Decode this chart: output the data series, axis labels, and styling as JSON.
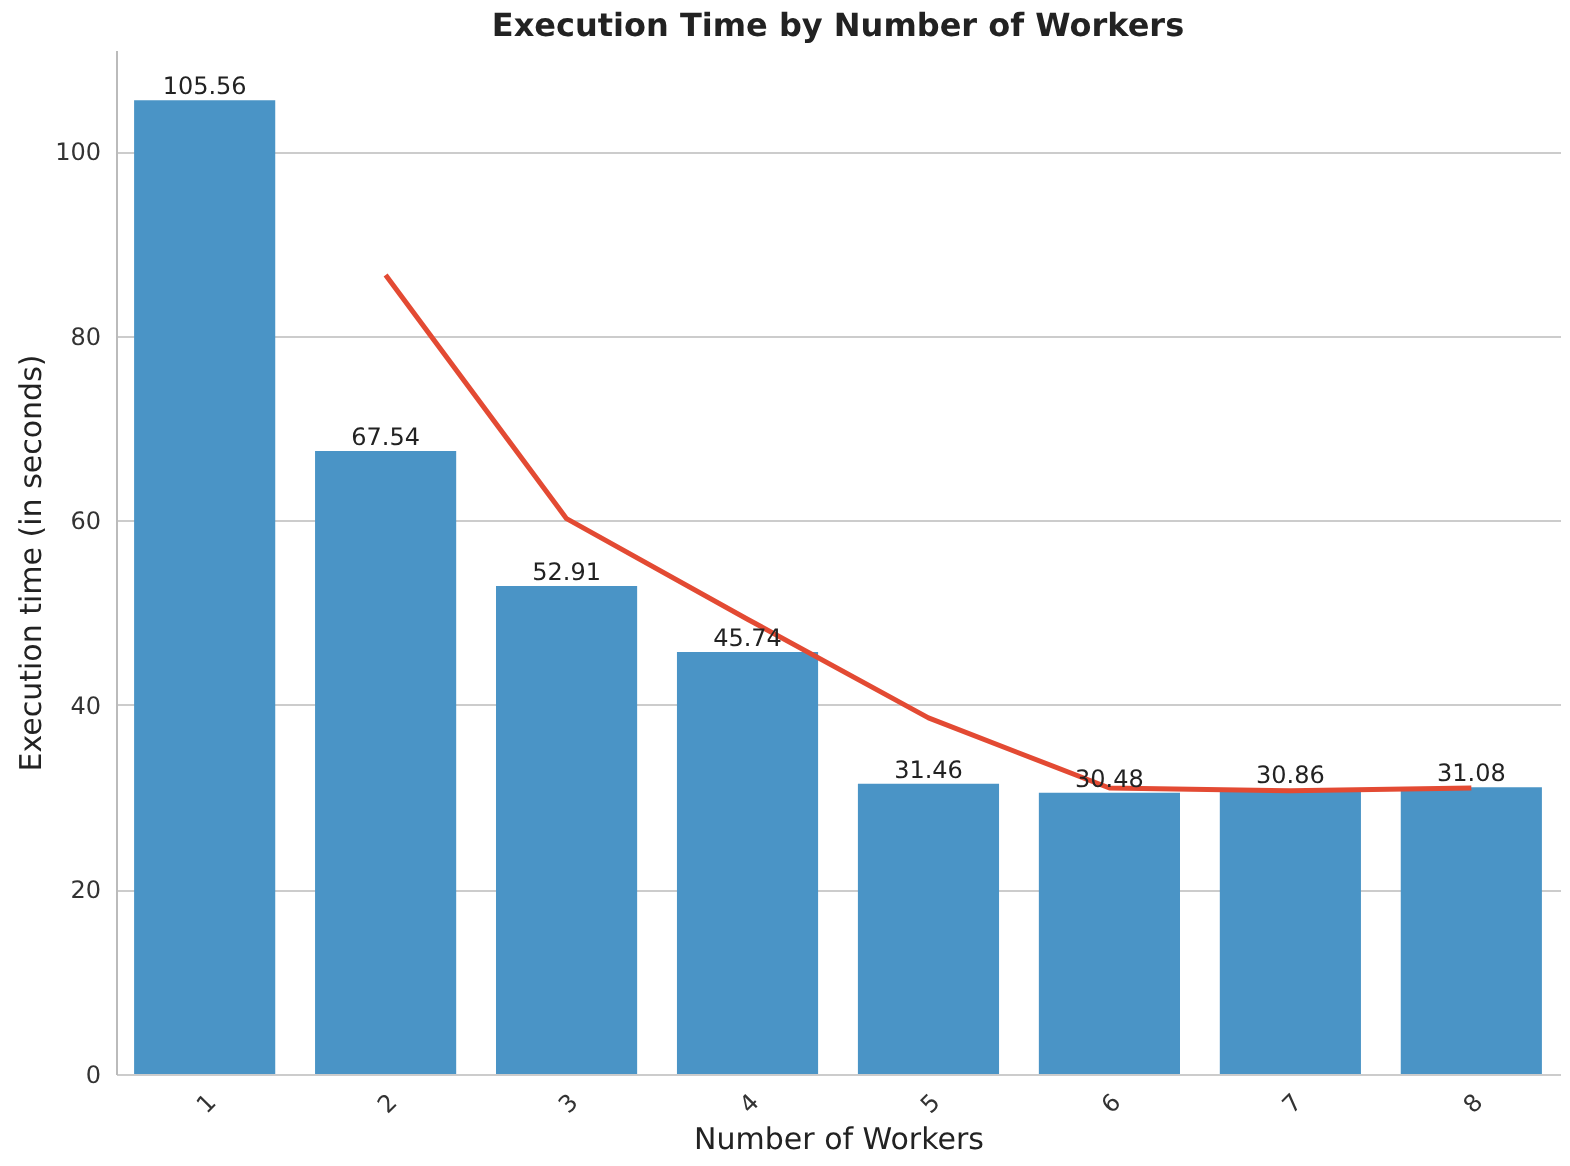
{
  "chart_data": {
    "type": "bar",
    "title": "Execution Time by Number of Workers",
    "xlabel": "Number of Workers",
    "ylabel": "Execution time (in seconds)",
    "categories": [
      "1",
      "2",
      "3",
      "4",
      "5",
      "6",
      "7",
      "8"
    ],
    "series": [
      {
        "color": "#4a94c6",
        "values": [
          105.56,
          67.54,
          52.91,
          45.74,
          31.46,
          30.48,
          30.86,
          31.08
        ],
        "value_labels": [
          "105.56",
          "67.54",
          "52.91",
          "45.74",
          "31.46",
          "30.48",
          "30.86",
          "31.08"
        ]
      },
      {
        "type": "line",
        "color": "#e34a33",
        "values": [
          null,
          86.6,
          60.2,
          49.3,
          38.6,
          31.0,
          30.7,
          31.0
        ],
        "marker": "none",
        "line_style": "solid"
      }
    ],
    "ylim": [
      0,
      111
    ],
    "yticks": [
      0,
      20,
      40,
      60,
      80,
      100
    ],
    "grid": "y"
  }
}
